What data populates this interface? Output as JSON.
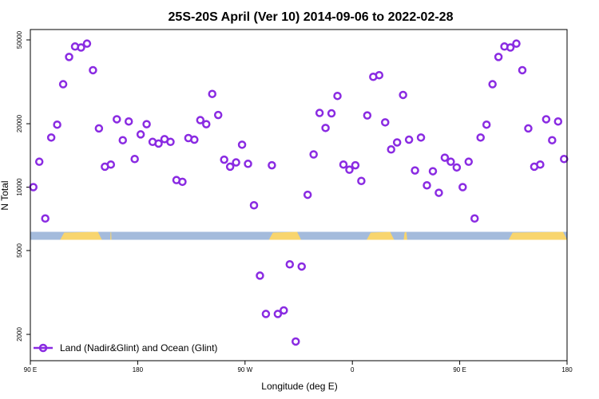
{
  "chart_data": {
    "type": "scatter",
    "title": "25S-20S April (Ver 10)   2014-09-06 to 2022-02-28",
    "xlabel": "Longitude (deg E)",
    "ylabel": "N Total",
    "x_ticks": [
      {
        "value": 90,
        "label": "90 E"
      },
      {
        "value": 180,
        "label": "180"
      },
      {
        "value": 270,
        "label": "90 W"
      },
      {
        "value": 360,
        "label": "0"
      },
      {
        "value": 450,
        "label": "90 E"
      },
      {
        "value": 540,
        "label": "180"
      }
    ],
    "xlim": [
      90,
      540
    ],
    "y_scale": "log",
    "ylim": [
      1500,
      56000
    ],
    "y_ticks": [
      {
        "value": 2000,
        "label": "2000"
      },
      {
        "value": 5000,
        "label": "5000"
      },
      {
        "value": 10000,
        "label": "10000"
      },
      {
        "value": 20000,
        "label": "20000"
      },
      {
        "value": 50000,
        "label": "50000"
      }
    ],
    "legend": {
      "position": "bottom-left",
      "entries": [
        {
          "label": "Land (Nadir&Glint) and Ocean (Glint)",
          "color": "#8a2be2"
        }
      ]
    },
    "surface_band": {
      "ocean_color": "#a4bbdc",
      "land_color": "#f8d56e",
      "land_segments": [
        [
          115,
          150
        ],
        [
          157,
          158
        ],
        [
          290,
          317
        ],
        [
          372,
          395
        ],
        [
          403,
          406
        ],
        [
          491,
          548
        ]
      ]
    },
    "series": [
      {
        "name": "Land (Nadir&Glint) and Ocean (Glint)",
        "color": "#8a2be2",
        "x": [
          92.5,
          97.5,
          102.5,
          107.5,
          112.5,
          117.5,
          122.5,
          127.5,
          132.5,
          137.5,
          142.5,
          147.5,
          152.5,
          157.5,
          162.5,
          167.5,
          172.5,
          177.5,
          182.5,
          187.5,
          192.5,
          197.5,
          202.5,
          207.5,
          212.5,
          217.5,
          222.5,
          227.5,
          232.5,
          237.5,
          242.5,
          247.5,
          252.5,
          257.5,
          262.5,
          267.5,
          272.5,
          277.5,
          282.5,
          287.5,
          292.5,
          297.5,
          302.5,
          307.5,
          312.5,
          317.5,
          322.5,
          327.5,
          332.5,
          337.5,
          342.5,
          347.5,
          352.5,
          357.5,
          362.5,
          367.5,
          372.5,
          377.5,
          382.5,
          387.5,
          392.5,
          397.5,
          402.5,
          407.5,
          412.5,
          417.5,
          422.5,
          427.5,
          432.5,
          437.5,
          442.5,
          447.5,
          452.5,
          457.5,
          462.5,
          467.5,
          472.5,
          477.5,
          482.5,
          487.5,
          492.5,
          497.5,
          502.5,
          507.5,
          512.5,
          517.5,
          522.5,
          527.5,
          532.5,
          537.5
        ],
        "y": [
          10000,
          13200,
          7100,
          17200,
          19800,
          30800,
          41500,
          46500,
          46000,
          48000,
          35900,
          19000,
          12500,
          12800,
          21000,
          16700,
          20500,
          13600,
          17800,
          19900,
          16400,
          16100,
          16900,
          16400,
          10800,
          10600,
          17100,
          16800,
          20800,
          19900,
          27700,
          22000,
          13500,
          12500,
          13100,
          15900,
          12900,
          8200,
          3800,
          2500,
          12700,
          2500,
          2600,
          4300,
          1850,
          4200,
          9200,
          14300,
          22500,
          19100,
          22400,
          27100,
          12800,
          12100,
          12700,
          10700,
          21900,
          33400,
          34000,
          20300,
          15100,
          16300,
          27400,
          16800,
          12000,
          17200,
          10200,
          11900,
          9400,
          13800,
          13200,
          12400,
          10000,
          13200,
          7100,
          17200,
          19800,
          30800,
          41500,
          46500,
          46000,
          48000,
          35900,
          19000,
          12500,
          12800,
          21000,
          16700,
          20500,
          13600
        ]
      }
    ]
  }
}
